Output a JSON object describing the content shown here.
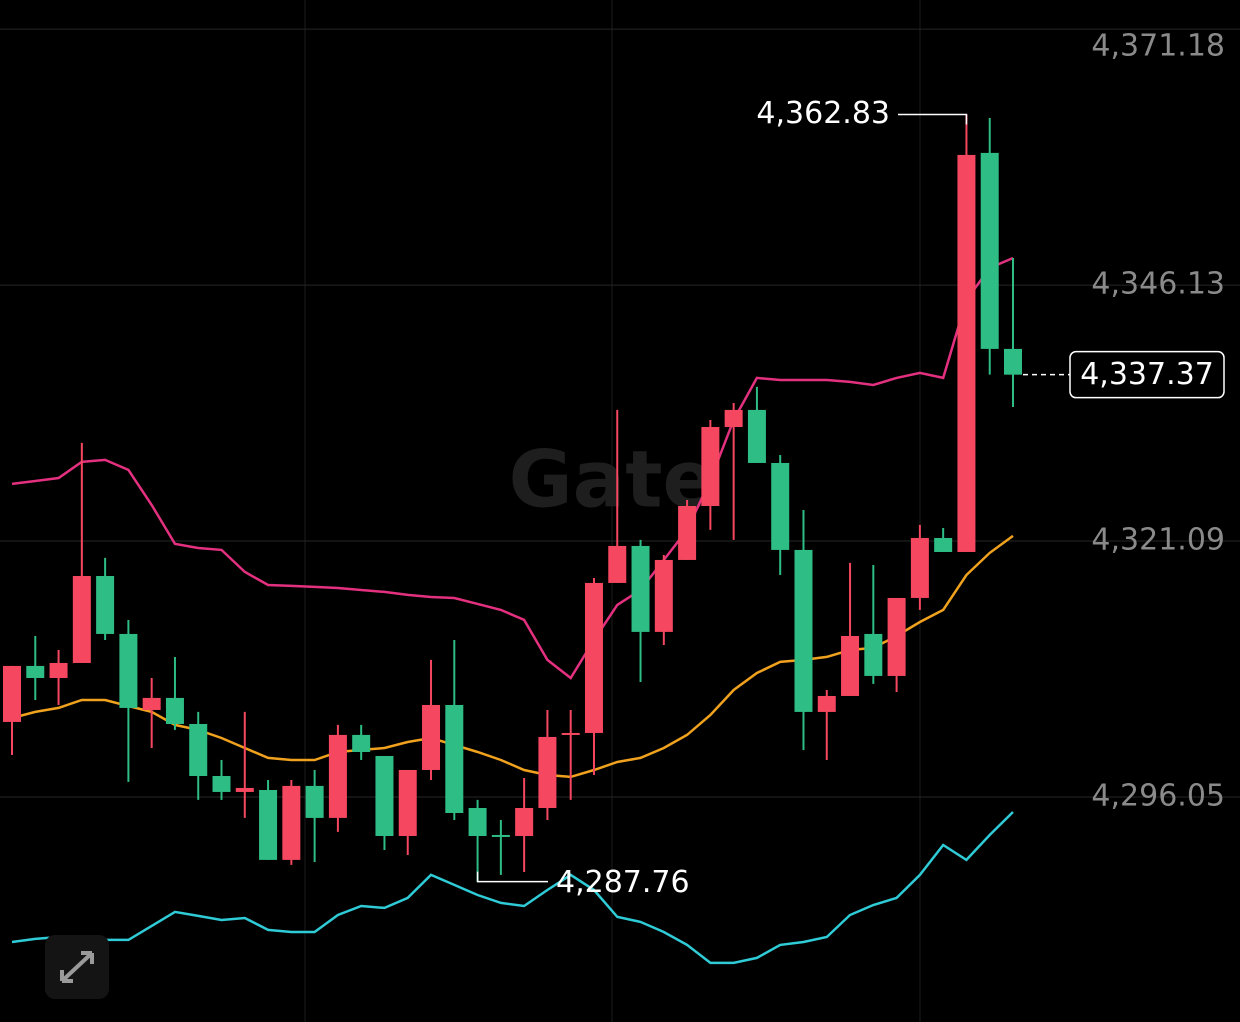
{
  "chart_data": {
    "type": "candlestick",
    "watermark": "Gate",
    "ylim": [
      4274.03,
      4374.03
    ],
    "yticks": [
      {
        "value": 4371.18,
        "label": "4,371.18"
      },
      {
        "value": 4346.13,
        "label": "4,346.13"
      },
      {
        "value": 4321.09,
        "label": "4,321.09"
      },
      {
        "value": 4296.05,
        "label": "4,296.05"
      }
    ],
    "grid": true,
    "up_color": "#f5475f",
    "down_color": "#2ebd85",
    "open": [
      4303.39,
      4308.87,
      4307.69,
      4309.16,
      4317.67,
      4312.0,
      4304.56,
      4305.74,
      4303.19,
      4298.1,
      4296.54,
      4296.73,
      4289.89,
      4297.13,
      4294.0,
      4302.12,
      4300.06,
      4292.23,
      4298.69,
      4305.05,
      4294.97,
      4292.33,
      4292.23,
      4294.97,
      4302.12,
      4302.31,
      4316.99,
      4320.61,
      4312.2,
      4319.24,
      4324.52,
      4332.25,
      4333.92,
      4328.73,
      4320.22,
      4304.37,
      4305.93,
      4312.0,
      4307.89,
      4315.52,
      4321.39,
      4320.02,
      4359.07,
      4339.89
    ],
    "high": [
      4308.87,
      4311.8,
      4310.43,
      4330.69,
      4319.44,
      4313.37,
      4307.69,
      4309.75,
      4304.37,
      4299.67,
      4304.37,
      4297.71,
      4297.71,
      4298.69,
      4303.1,
      4303.1,
      4300.06,
      4298.69,
      4309.46,
      4311.41,
      4295.76,
      4293.8,
      4297.91,
      4304.56,
      4304.56,
      4317.48,
      4333.92,
      4321.2,
      4319.73,
      4325.11,
      4332.94,
      4334.6,
      4336.17,
      4329.51,
      4324.13,
      4306.52,
      4318.95,
      4318.75,
      4315.52,
      4322.67,
      4322.37,
      4362.83,
      4362.49,
      4348.79
    ],
    "low": [
      4300.16,
      4305.54,
      4305.05,
      4309.16,
      4311.41,
      4297.52,
      4300.84,
      4302.61,
      4295.76,
      4295.76,
      4294.0,
      4289.89,
      4289.4,
      4289.69,
      4292.63,
      4299.67,
      4290.86,
      4290.37,
      4297.71,
      4293.8,
      4287.76,
      4288.42,
      4288.71,
      4293.8,
      4295.76,
      4298.2,
      4316.99,
      4307.3,
      4310.92,
      4319.24,
      4322.18,
      4321.2,
      4328.73,
      4317.77,
      4300.65,
      4299.67,
      4305.93,
      4307.11,
      4306.32,
      4314.35,
      4320.02,
      4320.02,
      4337.37,
      4334.21
    ],
    "close": [
      4308.87,
      4307.69,
      4309.16,
      4317.67,
      4312.0,
      4304.76,
      4305.74,
      4303.19,
      4298.1,
      4296.54,
      4296.93,
      4289.89,
      4297.13,
      4294.0,
      4302.12,
      4300.45,
      4292.23,
      4298.69,
      4305.05,
      4294.48,
      4292.23,
      4292.23,
      4294.97,
      4301.92,
      4302.31,
      4316.99,
      4320.61,
      4312.2,
      4319.24,
      4324.52,
      4332.25,
      4333.92,
      4328.73,
      4320.22,
      4304.37,
      4305.93,
      4311.8,
      4307.89,
      4315.52,
      4321.39,
      4320.02,
      4358.87,
      4339.89,
      4337.37
    ],
    "lines": [
      {
        "color": "#e3307f",
        "values": [
          4326.68,
          4326.97,
          4327.26,
          4328.83,
          4329.03,
          4328.05,
          4324.62,
          4320.81,
          4320.41,
          4320.22,
          4318.07,
          4316.79,
          4316.7,
          4316.6,
          4316.5,
          4316.3,
          4316.11,
          4315.82,
          4315.62,
          4315.52,
          4314.94,
          4314.35,
          4313.37,
          4309.46,
          4307.69,
          4311.41,
          4314.84,
          4316.3,
          4319.24,
          4322.18,
          4327.07,
          4332.94,
          4337.05,
          4336.85,
          4336.85,
          4336.85,
          4336.66,
          4336.36,
          4337.05,
          4337.54,
          4337.05,
          4344.68,
          4347.81,
          4348.79
        ]
      },
      {
        "color": "#f0a21e",
        "values": [
          4303.78,
          4304.37,
          4304.76,
          4305.54,
          4305.54,
          4304.95,
          4304.37,
          4303.1,
          4302.61,
          4301.82,
          4300.84,
          4299.87,
          4299.67,
          4299.67,
          4300.45,
          4300.65,
          4300.84,
          4301.43,
          4301.82,
          4301.14,
          4300.45,
          4299.67,
          4298.69,
          4298.2,
          4298.01,
          4298.69,
          4299.47,
          4299.87,
          4300.84,
          4302.12,
          4304.07,
          4306.52,
          4308.18,
          4309.26,
          4309.46,
          4309.75,
          4310.43,
          4310.63,
          4311.8,
          4313.17,
          4314.35,
          4317.77,
          4319.93,
          4321.59
        ]
      },
      {
        "color": "#2fcbd6",
        "values": [
          4281.86,
          4282.16,
          4282.35,
          4282.25,
          4282.06,
          4282.06,
          4283.43,
          4284.8,
          4284.41,
          4284.01,
          4284.21,
          4283.04,
          4282.84,
          4282.84,
          4284.5,
          4285.38,
          4285.19,
          4286.17,
          4288.42,
          4287.44,
          4286.46,
          4285.68,
          4285.38,
          4286.95,
          4288.42,
          4286.95,
          4284.31,
          4283.82,
          4282.84,
          4281.57,
          4279.81,
          4279.81,
          4280.3,
          4281.57,
          4281.86,
          4282.35,
          4284.5,
          4285.48,
          4286.17,
          4288.42,
          4291.35,
          4289.89,
          4292.33,
          4294.58
        ]
      }
    ],
    "high_label": {
      "value": 4362.83,
      "label": "4,362.83"
    },
    "low_label": {
      "value": 4287.76,
      "label": "4,287.76"
    },
    "last_price": {
      "value": 4337.37,
      "label": "4,337.37"
    }
  }
}
